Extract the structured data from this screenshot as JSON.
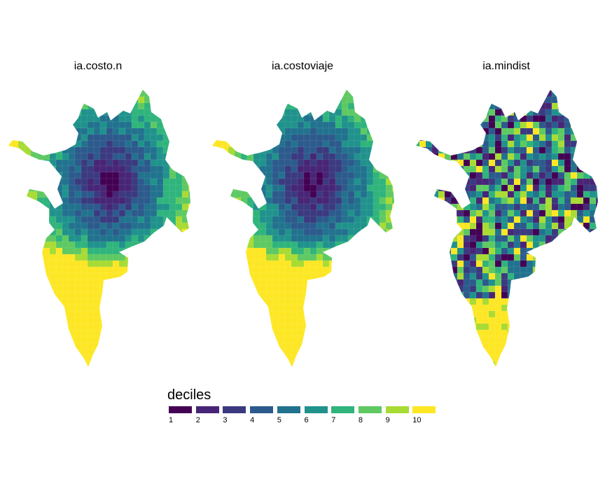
{
  "panels": [
    {
      "title": "ia.costo.n",
      "pattern": "radial"
    },
    {
      "title": "ia.costoviaje",
      "pattern": "radial"
    },
    {
      "title": "ia.mindist",
      "pattern": "mosaic"
    }
  ],
  "legend": {
    "title": "deciles",
    "items": [
      {
        "label": "1",
        "color": "#440154"
      },
      {
        "label": "2",
        "color": "#482576"
      },
      {
        "label": "3",
        "color": "#3b3a80"
      },
      {
        "label": "4",
        "color": "#2c5a8c"
      },
      {
        "label": "5",
        "color": "#21728e"
      },
      {
        "label": "6",
        "color": "#20928c"
      },
      {
        "label": "7",
        "color": "#2fb47c"
      },
      {
        "label": "8",
        "color": "#5ec962"
      },
      {
        "label": "9",
        "color": "#a8db34"
      },
      {
        "label": "10",
        "color": "#fde725"
      }
    ]
  }
}
